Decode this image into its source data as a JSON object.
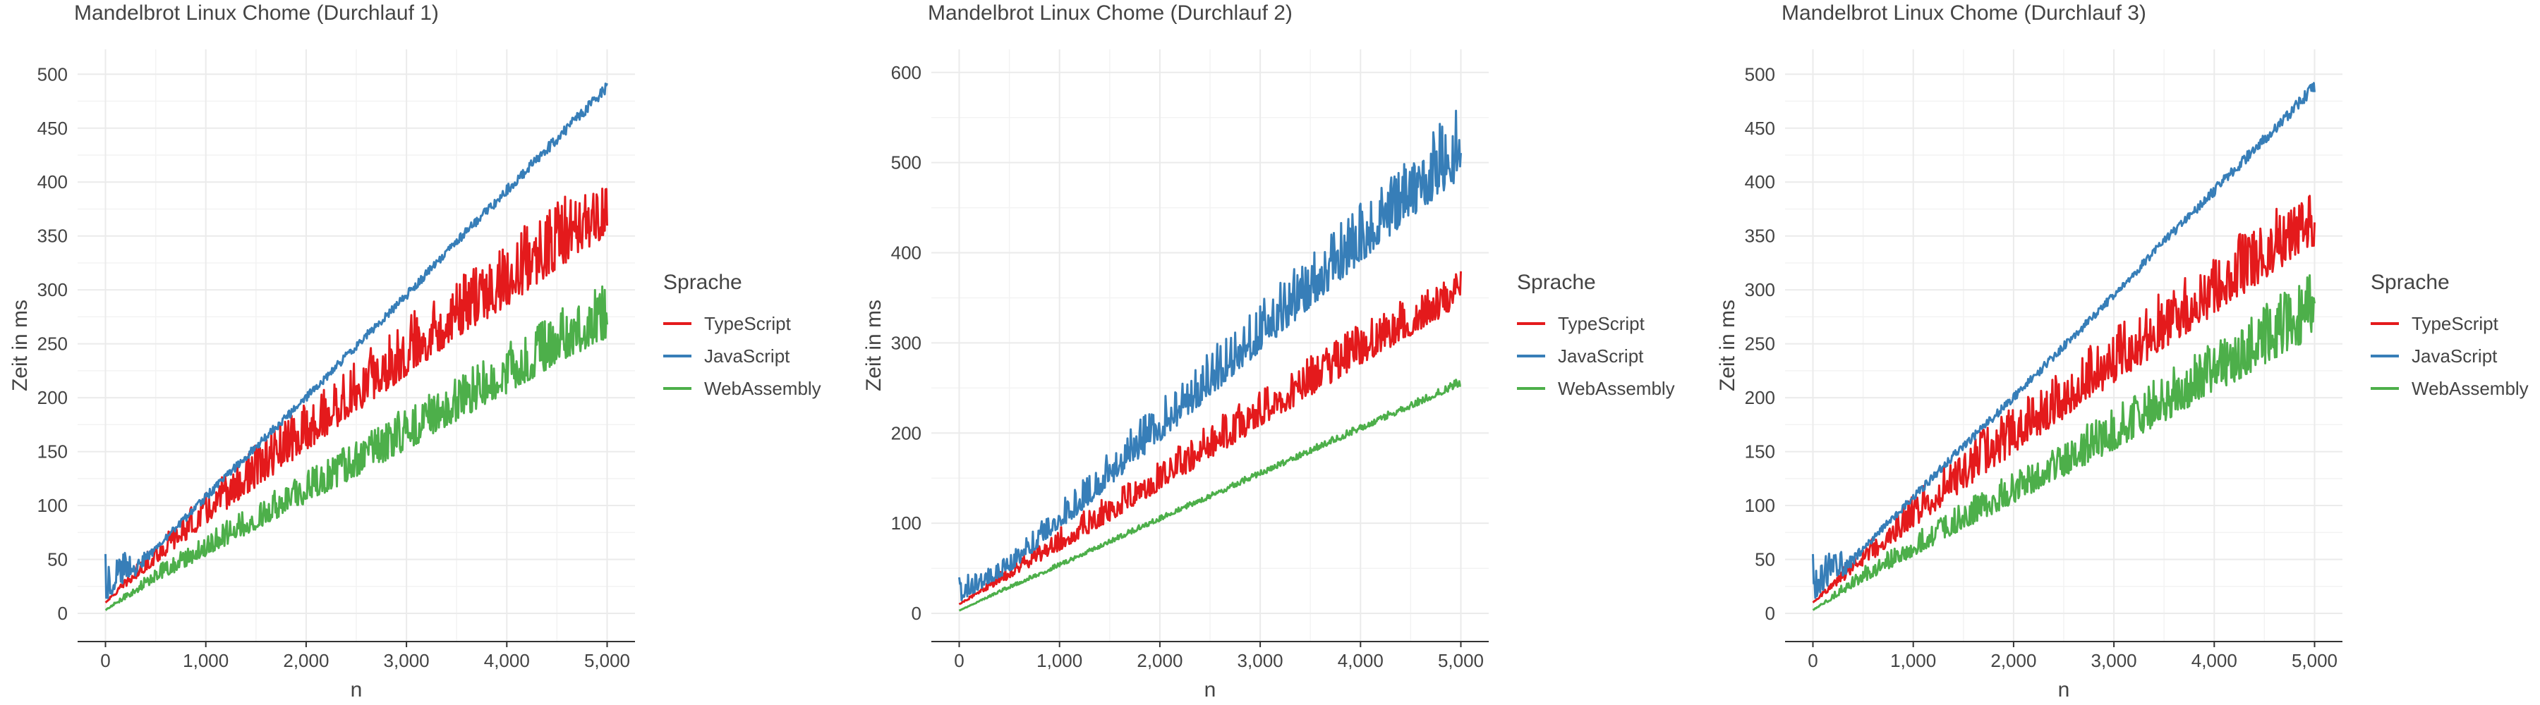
{
  "page": {
    "background": "#ffffff"
  },
  "colors": {
    "TypeScript": "#e41a1c",
    "JavaScript": "#377eb8",
    "WebAssembly": "#4daf4a",
    "grid": "#ebebeb",
    "axis": "#333333",
    "text": "#444444"
  },
  "chart_data": [
    {
      "type": "line",
      "title": "Mandelbrot Linux Chome (Durchlauf 1)",
      "xlabel": "n",
      "ylabel": "Zeit in ms",
      "xlim": [
        0,
        5000
      ],
      "ylim": [
        0,
        510
      ],
      "xticks": [
        0,
        1000,
        2000,
        3000,
        4000,
        5000
      ],
      "xtick_labels": [
        "0",
        "1,000",
        "2,000",
        "3,000",
        "4,000",
        "5,000"
      ],
      "yticks": [
        0,
        50,
        100,
        150,
        200,
        250,
        300,
        350,
        400,
        450,
        500
      ],
      "ytick_labels": [
        "0",
        "50",
        "100",
        "150",
        "200",
        "250",
        "300",
        "350",
        "400",
        "450",
        "500"
      ],
      "grid": true,
      "legend": {
        "title": "Sprache",
        "position": "right"
      },
      "series": [
        {
          "name": "TypeScript",
          "x": [
            0,
            500,
            1000,
            1500,
            2000,
            2500,
            3000,
            3500,
            4000,
            4500,
            5000
          ],
          "y": [
            10,
            48,
            85,
            120,
            155,
            190,
            225,
            260,
            290,
            325,
            355
          ],
          "spread": [
            0,
            20,
            30,
            40,
            45,
            50,
            55,
            55,
            60,
            65,
            50
          ]
        },
        {
          "name": "JavaScript",
          "x": [
            0,
            500,
            1000,
            1500,
            2000,
            2500,
            3000,
            3500,
            4000,
            4500,
            5000
          ],
          "y": [
            15,
            60,
            108,
            155,
            200,
            248,
            295,
            345,
            392,
            440,
            488
          ],
          "spread": [
            40,
            6,
            8,
            8,
            8,
            8,
            8,
            8,
            10,
            10,
            10
          ]
        },
        {
          "name": "WebAssembly",
          "x": [
            0,
            500,
            1000,
            1500,
            2000,
            2500,
            3000,
            3500,
            4000,
            4500,
            5000
          ],
          "y": [
            3,
            30,
            55,
            80,
            105,
            130,
            155,
            182,
            208,
            235,
            260
          ],
          "spread": [
            0,
            15,
            20,
            25,
            30,
            35,
            40,
            40,
            45,
            50,
            55
          ]
        }
      ]
    },
    {
      "type": "line",
      "title": "Mandelbrot Linux Chome (Durchlauf 2)",
      "xlabel": "n",
      "ylabel": "Zeit in ms",
      "xlim": [
        0,
        5000
      ],
      "ylim": [
        0,
        610
      ],
      "xticks": [
        0,
        1000,
        2000,
        3000,
        4000,
        5000
      ],
      "xtick_labels": [
        "0",
        "1,000",
        "2,000",
        "3,000",
        "4,000",
        "5,000"
      ],
      "yticks": [
        0,
        100,
        200,
        300,
        400,
        500,
        600
      ],
      "ytick_labels": [
        "0",
        "100",
        "200",
        "300",
        "400",
        "500",
        "600"
      ],
      "grid": true,
      "legend": {
        "title": "Sprache",
        "position": "right"
      },
      "series": [
        {
          "name": "TypeScript",
          "x": [
            0,
            500,
            1000,
            1500,
            2000,
            2500,
            3000,
            3500,
            4000,
            4500,
            5000
          ],
          "y": [
            10,
            40,
            72,
            105,
            140,
            175,
            210,
            245,
            280,
            312,
            345
          ],
          "spread": [
            0,
            15,
            25,
            30,
            35,
            40,
            40,
            45,
            45,
            45,
            40
          ]
        },
        {
          "name": "JavaScript",
          "x": [
            0,
            500,
            1000,
            1500,
            2000,
            2500,
            3000,
            3500,
            4000,
            4500,
            5000
          ],
          "y": [
            15,
            48,
            95,
            145,
            195,
            245,
            295,
            345,
            395,
            445,
            490
          ],
          "spread": [
            25,
            20,
            30,
            40,
            45,
            50,
            55,
            60,
            65,
            70,
            85
          ]
        },
        {
          "name": "WebAssembly",
          "x": [
            0,
            500,
            1000,
            1500,
            2000,
            2500,
            3000,
            3500,
            4000,
            4500,
            5000
          ],
          "y": [
            3,
            28,
            52,
            78,
            103,
            128,
            153,
            178,
            203,
            228,
            253
          ],
          "spread": [
            0,
            4,
            5,
            6,
            6,
            6,
            7,
            7,
            8,
            8,
            10
          ]
        }
      ]
    },
    {
      "type": "line",
      "title": "Mandelbrot Linux Chome (Durchlauf 3)",
      "xlabel": "n",
      "ylabel": "Zeit in ms",
      "xlim": [
        0,
        5000
      ],
      "ylim": [
        0,
        510
      ],
      "xticks": [
        0,
        1000,
        2000,
        3000,
        4000,
        5000
      ],
      "xtick_labels": [
        "0",
        "1,000",
        "2,000",
        "3,000",
        "4,000",
        "5,000"
      ],
      "yticks": [
        0,
        50,
        100,
        150,
        200,
        250,
        300,
        350,
        400,
        450,
        500
      ],
      "ytick_labels": [
        "0",
        "50",
        "100",
        "150",
        "200",
        "250",
        "300",
        "350",
        "400",
        "450",
        "500"
      ],
      "grid": true,
      "legend": {
        "title": "Sprache",
        "position": "right"
      },
      "series": [
        {
          "name": "TypeScript",
          "x": [
            0,
            500,
            1000,
            1500,
            2000,
            2500,
            3000,
            3500,
            4000,
            4500,
            5000
          ],
          "y": [
            10,
            45,
            82,
            118,
            152,
            185,
            218,
            250,
            282,
            315,
            345
          ],
          "spread": [
            0,
            20,
            30,
            40,
            45,
            50,
            50,
            55,
            55,
            60,
            50
          ]
        },
        {
          "name": "JavaScript",
          "x": [
            0,
            500,
            1000,
            1500,
            2000,
            2500,
            3000,
            3500,
            4000,
            4500,
            5000
          ],
          "y": [
            15,
            60,
            108,
            155,
            200,
            248,
            295,
            345,
            392,
            440,
            488
          ],
          "spread": [
            40,
            6,
            8,
            8,
            8,
            8,
            8,
            8,
            10,
            10,
            12
          ]
        },
        {
          "name": "WebAssembly",
          "x": [
            0,
            500,
            1000,
            1500,
            2000,
            2500,
            3000,
            3500,
            4000,
            4500,
            5000
          ],
          "y": [
            3,
            30,
            55,
            80,
            105,
            130,
            155,
            182,
            208,
            235,
            262
          ],
          "spread": [
            0,
            15,
            20,
            25,
            30,
            35,
            40,
            45,
            50,
            55,
            60
          ]
        }
      ]
    }
  ]
}
